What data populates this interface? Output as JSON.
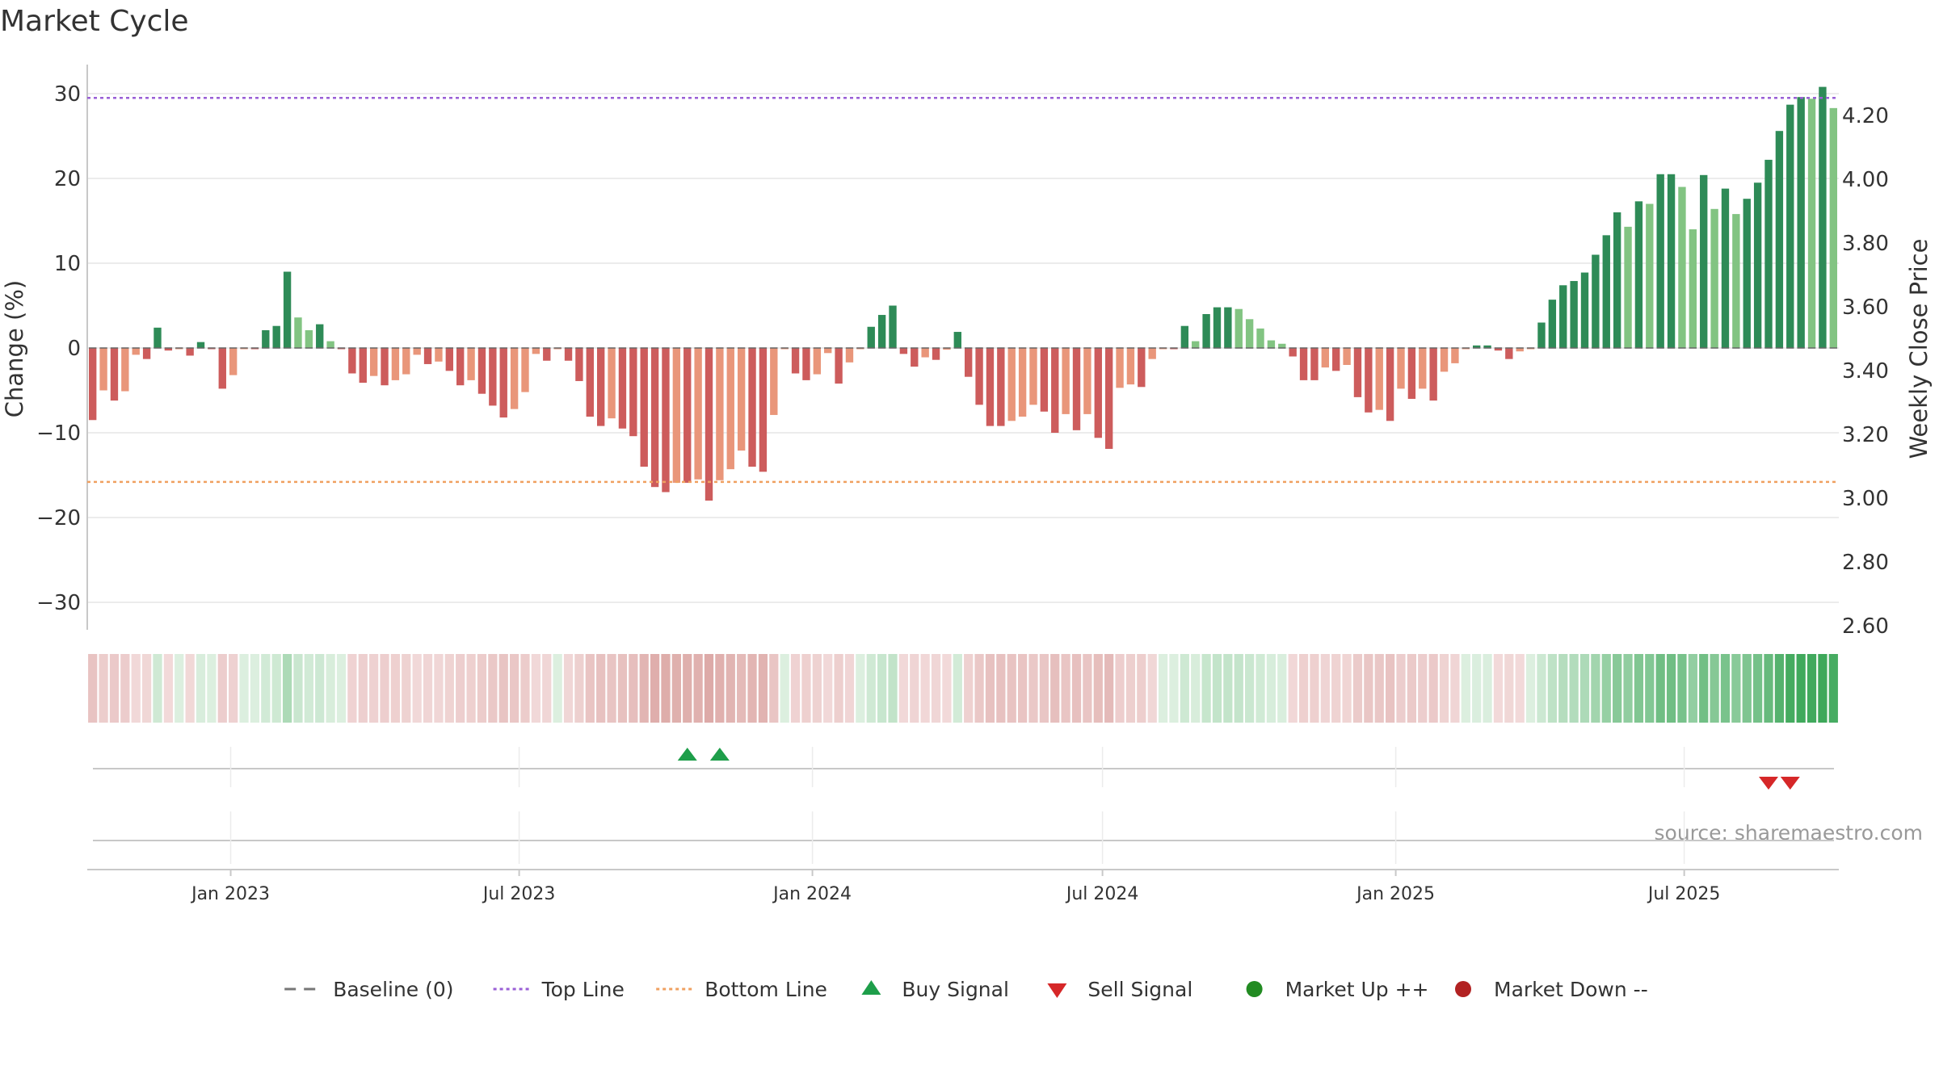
{
  "chart_data": {
    "type": "bar",
    "title": "Market Cycle",
    "ylabel_left": "Change (%)",
    "ylabel_right": "Weekly Close Price",
    "source": "source: sharemaestro.com",
    "y_left": {
      "min": -33,
      "max": 33,
      "ticks": [
        30,
        20,
        10,
        0,
        -10,
        -20,
        -30
      ],
      "tick_labels": [
        "30",
        "20",
        "10",
        "0",
        "−10",
        "−20",
        "−30"
      ]
    },
    "y_right": {
      "min": 2.59,
      "max": 4.36,
      "ticks": [
        4.2,
        4.0,
        3.8,
        3.6,
        3.4,
        3.2,
        3.0,
        2.8,
        2.6
      ],
      "tick_labels": [
        "4.20",
        "4.00",
        "3.80",
        "3.60",
        "3.40",
        "3.20",
        "3.00",
        "2.80",
        "2.60"
      ]
    },
    "x_axis": {
      "start": "2022-10-03",
      "end": "2025-10-06",
      "ticks": [
        "2023-01-01",
        "2023-07-01",
        "2024-01-01",
        "2024-07-01",
        "2025-01-01",
        "2025-07-01"
      ],
      "tick_labels": [
        "Jan 2023",
        "Jul 2023",
        "Jan 2024",
        "Jul 2024",
        "Jan 2025",
        "Jul 2025"
      ]
    },
    "reference_lines": {
      "baseline": 0,
      "top_line": 29.5,
      "bottom_line": -15.8
    },
    "first_week": "2022-10-03",
    "values": [
      -8.5,
      -5,
      -6.2,
      -5.1,
      -0.8,
      -1.3,
      2.4,
      -0.3,
      0,
      -0.9,
      0.7,
      0,
      -4.8,
      -3.2,
      0,
      0,
      2.1,
      2.6,
      9,
      3.6,
      2.1,
      2.8,
      0.8,
      0,
      -3,
      -4.1,
      -3.3,
      -4.4,
      -3.8,
      -3.1,
      -0.8,
      -1.9,
      -1.6,
      -2.7,
      -4.4,
      -3.8,
      -5.4,
      -6.8,
      -8.2,
      -7.2,
      -5.2,
      -0.7,
      -1.5,
      0,
      -1.5,
      -3.9,
      -8.1,
      -9.2,
      -8.3,
      -9.5,
      -10.4,
      -14,
      -16.4,
      -17,
      -15.9,
      -15.9,
      -15.5,
      -18,
      -15.6,
      -14.3,
      -12.1,
      -14,
      -14.6,
      -7.9,
      0,
      -3,
      -3.8,
      -3.1,
      -0.6,
      -4.2,
      -1.7,
      0,
      2.5,
      3.9,
      5,
      -0.7,
      -2.2,
      -1.1,
      -1.4,
      -0.2,
      1.9,
      -3.4,
      -6.7,
      -9.2,
      -9.2,
      -8.6,
      -8.1,
      -6.7,
      -7.5,
      -10,
      -7.8,
      -9.7,
      -7.8,
      -10.6,
      -11.9,
      -4.7,
      -4.3,
      -4.6,
      -1.3,
      0,
      0,
      2.6,
      0.8,
      4,
      4.8,
      4.8,
      4.6,
      3.4,
      2.3,
      0.9,
      0.5,
      -1,
      -3.8,
      -3.8,
      -2.3,
      -2.7,
      -2,
      -5.8,
      -7.6,
      -7.3,
      -8.6,
      -4.8,
      -6,
      -4.8,
      -6.2,
      -2.8,
      -1.8,
      0,
      0.3,
      0.3,
      -0.3,
      -1.3,
      -0.4,
      0,
      3,
      5.7,
      7.4,
      7.9,
      8.9,
      11,
      13.3,
      16,
      14.3,
      17.3,
      17,
      20.5,
      20.5,
      19,
      14,
      20.4,
      16.4,
      18.8,
      15.8,
      17.6,
      19.5,
      22.2,
      25.6,
      28.7,
      29.6,
      29.4,
      30.8,
      28.3
    ],
    "buy_signals": [
      "2023-10-23",
      "2023-11-13"
    ],
    "sell_signals": [
      "2025-09-22",
      "2025-10-06"
    ],
    "colors": {
      "up_strong": "#2e8b57",
      "up_light": "#82c482",
      "down_strong": "#cd5c5c",
      "down_light": "#e9967a",
      "top_line": "#9a5fd6",
      "bottom_line": "#f0a060",
      "buy": "#1e9e4a",
      "sell": "#d62728",
      "grid": "#e6e6e6",
      "axis": "#c8c8c8",
      "text": "#333333"
    },
    "legend": [
      {
        "label": "Baseline (0)",
        "symbol": "dash-line",
        "color": "#777777"
      },
      {
        "label": "Top Line",
        "symbol": "dotted-line",
        "color": "#9a5fd6"
      },
      {
        "label": "Bottom Line",
        "symbol": "dotted-line",
        "color": "#f0a060"
      },
      {
        "label": "Buy Signal",
        "symbol": "triangle-up",
        "color": "#1e9e4a"
      },
      {
        "label": "Sell Signal",
        "symbol": "triangle-down",
        "color": "#d62728"
      },
      {
        "label": "Market Up ++",
        "symbol": "circle",
        "color": "#228b22"
      },
      {
        "label": "Market Down --",
        "symbol": "circle",
        "color": "#b22222"
      }
    ]
  }
}
